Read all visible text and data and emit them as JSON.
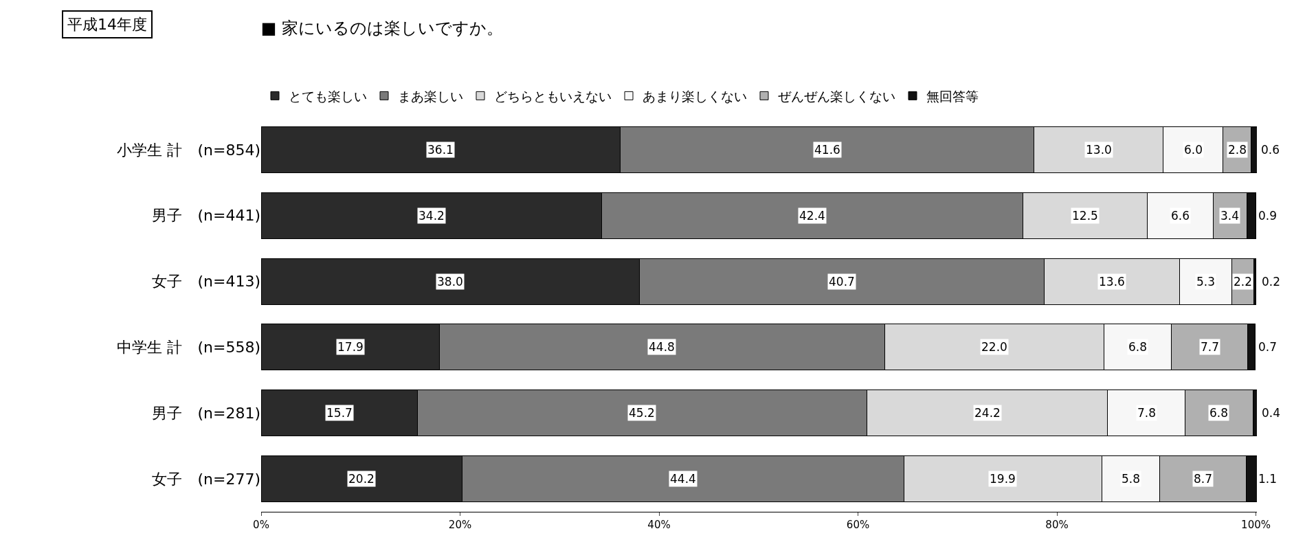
{
  "chart_data": {
    "type": "bar",
    "orientation": "horizontal",
    "stacked": true,
    "legend": "top",
    "title": "■ 家にいるのは楽しいですか。",
    "annotations": [
      "平成14年度"
    ],
    "categories": [
      "小学生 計　(n=854)",
      "男子　(n=441)",
      "女子　(n=413)",
      "中学生 計　(n=558)",
      "男子　(n=281)",
      "女子　(n=277)"
    ],
    "xlim": [
      0,
      100.1
    ],
    "xticks": [
      {
        "value": 0,
        "label": "0%"
      },
      {
        "value": 20,
        "label": "20%"
      },
      {
        "value": 40,
        "label": "40%"
      },
      {
        "value": 60,
        "label": "60%"
      },
      {
        "value": 80,
        "label": "80%"
      },
      {
        "value": 100,
        "label": "100%"
      }
    ],
    "series": [
      {
        "name": "とても楽しい",
        "color": "#2b2b2b",
        "values": [
          36.1,
          34.2,
          38.0,
          17.9,
          15.7,
          20.2
        ],
        "value_labels": [
          "36.1",
          "34.2",
          "38.0",
          "17.9",
          "15.7",
          "20.2"
        ]
      },
      {
        "name": "まあ楽しい",
        "color": "#7a7a7a",
        "values": [
          41.6,
          42.4,
          40.7,
          44.8,
          45.2,
          44.4
        ],
        "value_labels": [
          "41.6",
          "42.4",
          "40.7",
          "44.8",
          "45.2",
          "44.4"
        ]
      },
      {
        "name": "どちらともいえない",
        "color": "#d9d9d9",
        "values": [
          13.0,
          12.5,
          13.6,
          22.0,
          24.2,
          19.9
        ],
        "value_labels": [
          "13.0",
          "12.5",
          "13.6",
          "22.0",
          "24.2",
          "19.9"
        ]
      },
      {
        "name": "あまり楽しくない",
        "color": "#f7f7f7",
        "values": [
          6.0,
          6.6,
          5.3,
          6.8,
          7.8,
          5.8
        ],
        "value_labels": [
          "6.0",
          "6.6",
          "5.3",
          "6.8",
          "7.8",
          "5.8"
        ]
      },
      {
        "name": "ぜんぜん楽しくない",
        "color": "#b0b0b0",
        "values": [
          2.8,
          3.4,
          2.2,
          7.7,
          6.8,
          8.7
        ],
        "value_labels": [
          "2.8",
          "3.4",
          "2.2",
          "7.7",
          "6.8",
          "8.7"
        ]
      },
      {
        "name": "無回答等",
        "color": "#111111",
        "values": [
          0.6,
          0.9,
          0.2,
          0.7,
          0.4,
          1.1
        ],
        "value_labels": [
          "0.6",
          "0.9",
          "0.2",
          "0.7",
          "0.4",
          "1.1"
        ]
      }
    ]
  }
}
